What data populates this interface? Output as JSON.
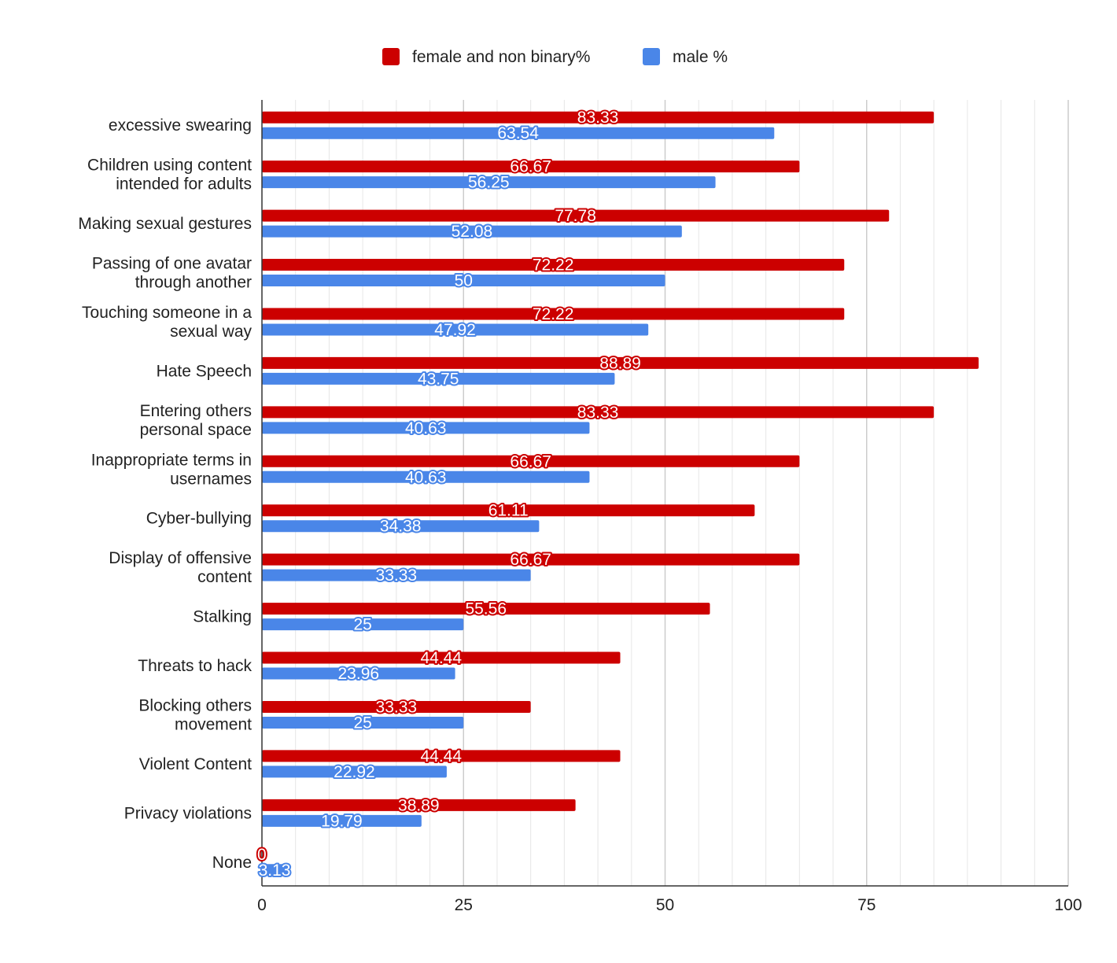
{
  "chart_data": {
    "type": "bar",
    "orientation": "horizontal",
    "title": "",
    "xlabel": "",
    "ylabel": "",
    "xlim": [
      0,
      100
    ],
    "xticks": [
      0,
      25,
      50,
      75,
      100
    ],
    "grid": true,
    "legend_position": "top-center",
    "categories": [
      [
        "excessive swearing"
      ],
      [
        "Children using content",
        "intended for adults"
      ],
      [
        "Making sexual gestures"
      ],
      [
        "Passing of one avatar",
        "through another"
      ],
      [
        "Touching someone in a",
        "sexual way"
      ],
      [
        "Hate Speech"
      ],
      [
        "Entering others",
        "personal space"
      ],
      [
        "Inappropriate terms in",
        "usernames"
      ],
      [
        "Cyber-bullying"
      ],
      [
        "Display of offensive",
        "content"
      ],
      [
        "Stalking"
      ],
      [
        "Threats to hack"
      ],
      [
        "Blocking others",
        "movement"
      ],
      [
        "Violent Content"
      ],
      [
        "Privacy violations"
      ],
      [
        "None"
      ]
    ],
    "series": [
      {
        "name": "female and non binary%",
        "color": "#cc0000",
        "values": [
          83.33,
          66.67,
          77.78,
          72.22,
          72.22,
          88.89,
          83.33,
          66.67,
          61.11,
          66.67,
          55.56,
          44.44,
          33.33,
          44.44,
          38.89,
          0
        ],
        "labels": [
          "83.33",
          "66.67",
          "77.78",
          "72.22",
          "72.22",
          "88.89",
          "83.33",
          "66.67",
          "61.11",
          "66.67",
          "55.56",
          "44.44",
          "33.33",
          "44.44",
          "38.89",
          "0"
        ]
      },
      {
        "name": "male %",
        "color": "#4a86e8",
        "values": [
          63.54,
          56.25,
          52.08,
          50,
          47.92,
          43.75,
          40.63,
          40.63,
          34.38,
          33.33,
          25,
          23.96,
          25,
          22.92,
          19.79,
          3.13
        ],
        "labels": [
          "63.54",
          "56.25",
          "52.08",
          "50",
          "47.92",
          "43.75",
          "40.63",
          "40.63",
          "34.38",
          "33.33",
          "25",
          "23.96",
          "25",
          "22.92",
          "19.79",
          "3.13"
        ]
      }
    ]
  }
}
